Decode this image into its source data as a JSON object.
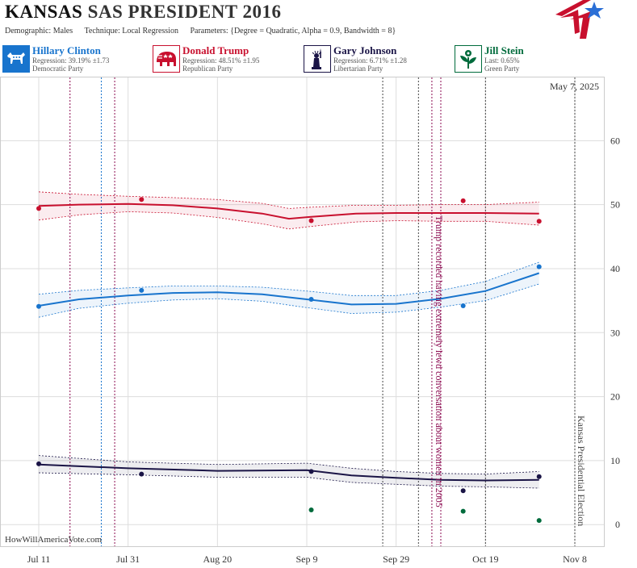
{
  "header": {
    "state": "KANSAS",
    "title_rest": "SAS PRESIDENT 2016",
    "demographic": "Demographic: Males",
    "technique": "Technique: Local Regression",
    "parameters": "Parameters: {Degree = Quadratic, Alpha = 0.9, Bandwidth = 8}"
  },
  "candidates": [
    {
      "name": "Hillary Clinton",
      "stat": "Regression: 39.19% ±1.73",
      "party": "Democratic Party",
      "color": "#1874cd",
      "icon": "donkey-icon"
    },
    {
      "name": "Donald Trump",
      "stat": "Regression: 48.51% ±1.95",
      "party": "Republican Party",
      "color": "#c8102e",
      "icon": "elephant-icon"
    },
    {
      "name": "Gary Johnson",
      "stat": "Regression: 6.71% ±1.28",
      "party": "Libertarian Party",
      "color": "#1a1446",
      "icon": "statue-of-liberty-icon"
    },
    {
      "name": "Jill Stein",
      "stat": "Last: 0.65%",
      "party": "Green Party",
      "color": "#006b3c",
      "icon": "flower-icon"
    }
  ],
  "chart_data": {
    "type": "line",
    "date_label": "May 7, 2025",
    "watermark": "HowWillAmericaVote.com",
    "x_ticks": [
      "Jul 11",
      "Jul 31",
      "Aug 20",
      "Sep 9",
      "Sep 29",
      "Oct 19",
      "Nov 8"
    ],
    "x_range": [
      "2016-07-11",
      "2016-11-08"
    ],
    "y_ticks": [
      0,
      10,
      20,
      30,
      40,
      50,
      60
    ],
    "ylim": [
      -3.5,
      70
    ],
    "grid": true,
    "annotations": [
      {
        "date": "2016-10-07",
        "text": "Trump recorded having extremely lewd conversation about women in 2005",
        "color": "#8b0a50"
      },
      {
        "date": "2016-11-08",
        "text": "Kansas Presidential Election",
        "color": "#444444"
      }
    ],
    "event_lines": [
      {
        "date": "2016-07-28",
        "color": "#8b0a50"
      },
      {
        "date": "2016-07-18",
        "color": "#8b0a50"
      },
      {
        "date": "2016-07-25",
        "color": "#1874cd"
      },
      {
        "date": "2016-09-26",
        "color": "#444444"
      },
      {
        "date": "2016-10-04",
        "color": "#444444"
      },
      {
        "date": "2016-10-09",
        "color": "#8b0a50"
      },
      {
        "date": "2016-10-19",
        "color": "#444444"
      }
    ],
    "series": [
      {
        "name": "Donald Trump",
        "color": "#c8102e",
        "points": [
          [
            "2016-07-11",
            49.4
          ],
          [
            "2016-08-03",
            50.8
          ],
          [
            "2016-09-10",
            47.5
          ],
          [
            "2016-10-14",
            50.6
          ],
          [
            "2016-10-31",
            47.4
          ]
        ],
        "trend": [
          [
            "2016-07-11",
            49.8
          ],
          [
            "2016-07-20",
            50.0
          ],
          [
            "2016-07-31",
            50.1
          ],
          [
            "2016-08-10",
            49.9
          ],
          [
            "2016-08-20",
            49.4
          ],
          [
            "2016-08-30",
            48.6
          ],
          [
            "2016-09-05",
            47.8
          ],
          [
            "2016-09-10",
            48.1
          ],
          [
            "2016-09-20",
            48.6
          ],
          [
            "2016-09-29",
            48.7
          ],
          [
            "2016-10-09",
            48.7
          ],
          [
            "2016-10-19",
            48.7
          ],
          [
            "2016-10-31",
            48.6
          ]
        ],
        "band_hi": [
          [
            "2016-07-11",
            52.0
          ],
          [
            "2016-07-20",
            51.6
          ],
          [
            "2016-07-31",
            51.3
          ],
          [
            "2016-08-10",
            51.1
          ],
          [
            "2016-08-20",
            50.8
          ],
          [
            "2016-08-30",
            50.2
          ],
          [
            "2016-09-05",
            49.4
          ],
          [
            "2016-09-10",
            49.6
          ],
          [
            "2016-09-20",
            49.9
          ],
          [
            "2016-09-29",
            49.9
          ],
          [
            "2016-10-09",
            50.0
          ],
          [
            "2016-10-19",
            50.0
          ],
          [
            "2016-10-31",
            50.4
          ]
        ],
        "band_lo": [
          [
            "2016-07-11",
            47.6
          ],
          [
            "2016-07-20",
            48.4
          ],
          [
            "2016-07-31",
            48.9
          ],
          [
            "2016-08-10",
            48.7
          ],
          [
            "2016-08-20",
            48.0
          ],
          [
            "2016-08-30",
            47.0
          ],
          [
            "2016-09-05",
            46.2
          ],
          [
            "2016-09-10",
            46.6
          ],
          [
            "2016-09-20",
            47.3
          ],
          [
            "2016-09-29",
            47.5
          ],
          [
            "2016-10-09",
            47.4
          ],
          [
            "2016-10-19",
            47.4
          ],
          [
            "2016-10-31",
            46.8
          ]
        ]
      },
      {
        "name": "Hillary Clinton",
        "color": "#1874cd",
        "points": [
          [
            "2016-07-11",
            34.1
          ],
          [
            "2016-08-03",
            36.6
          ],
          [
            "2016-09-10",
            35.2
          ],
          [
            "2016-10-14",
            34.2
          ],
          [
            "2016-10-31",
            40.3
          ]
        ],
        "trend": [
          [
            "2016-07-11",
            34.2
          ],
          [
            "2016-07-20",
            35.2
          ],
          [
            "2016-07-31",
            35.8
          ],
          [
            "2016-08-10",
            36.2
          ],
          [
            "2016-08-20",
            36.3
          ],
          [
            "2016-08-30",
            36.0
          ],
          [
            "2016-09-09",
            35.2
          ],
          [
            "2016-09-19",
            34.4
          ],
          [
            "2016-09-29",
            34.5
          ],
          [
            "2016-10-09",
            35.3
          ],
          [
            "2016-10-19",
            36.5
          ],
          [
            "2016-10-31",
            39.3
          ]
        ],
        "band_hi": [
          [
            "2016-07-11",
            36.0
          ],
          [
            "2016-07-20",
            36.6
          ],
          [
            "2016-07-31",
            37.0
          ],
          [
            "2016-08-10",
            37.3
          ],
          [
            "2016-08-20",
            37.3
          ],
          [
            "2016-08-30",
            37.1
          ],
          [
            "2016-09-09",
            36.5
          ],
          [
            "2016-09-19",
            35.8
          ],
          [
            "2016-09-29",
            35.8
          ],
          [
            "2016-10-09",
            36.6
          ],
          [
            "2016-10-19",
            38.0
          ],
          [
            "2016-10-31",
            41.0
          ]
        ],
        "band_lo": [
          [
            "2016-07-11",
            32.4
          ],
          [
            "2016-07-20",
            33.8
          ],
          [
            "2016-07-31",
            34.6
          ],
          [
            "2016-08-10",
            35.1
          ],
          [
            "2016-08-20",
            35.3
          ],
          [
            "2016-08-30",
            34.9
          ],
          [
            "2016-09-09",
            33.9
          ],
          [
            "2016-09-19",
            33.0
          ],
          [
            "2016-09-29",
            33.2
          ],
          [
            "2016-10-09",
            34.0
          ],
          [
            "2016-10-19",
            35.0
          ],
          [
            "2016-10-31",
            37.6
          ]
        ]
      },
      {
        "name": "Gary Johnson",
        "color": "#1a1446",
        "points": [
          [
            "2016-07-11",
            9.5
          ],
          [
            "2016-08-03",
            7.9
          ],
          [
            "2016-09-10",
            8.3
          ],
          [
            "2016-10-14",
            5.3
          ],
          [
            "2016-10-31",
            7.5
          ]
        ],
        "trend": [
          [
            "2016-07-11",
            9.4
          ],
          [
            "2016-07-31",
            8.8
          ],
          [
            "2016-08-20",
            8.4
          ],
          [
            "2016-09-09",
            8.5
          ],
          [
            "2016-09-19",
            7.7
          ],
          [
            "2016-09-29",
            7.3
          ],
          [
            "2016-10-09",
            7.0
          ],
          [
            "2016-10-19",
            6.9
          ],
          [
            "2016-10-31",
            7.0
          ]
        ],
        "band_hi": [
          [
            "2016-07-11",
            10.8
          ],
          [
            "2016-07-31",
            9.8
          ],
          [
            "2016-08-20",
            9.4
          ],
          [
            "2016-09-09",
            9.6
          ],
          [
            "2016-09-19",
            8.8
          ],
          [
            "2016-09-29",
            8.3
          ],
          [
            "2016-10-09",
            8.0
          ],
          [
            "2016-10-19",
            7.9
          ],
          [
            "2016-10-31",
            8.3
          ]
        ],
        "band_lo": [
          [
            "2016-07-11",
            8.1
          ],
          [
            "2016-07-31",
            7.8
          ],
          [
            "2016-08-20",
            7.4
          ],
          [
            "2016-09-09",
            7.4
          ],
          [
            "2016-09-19",
            6.6
          ],
          [
            "2016-09-29",
            6.3
          ],
          [
            "2016-10-09",
            6.0
          ],
          [
            "2016-10-19",
            5.9
          ],
          [
            "2016-10-31",
            5.7
          ]
        ]
      },
      {
        "name": "Jill Stein",
        "color": "#006b3c",
        "points": [
          [
            "2016-09-10",
            2.3
          ],
          [
            "2016-10-14",
            2.1
          ],
          [
            "2016-10-31",
            0.65
          ]
        ]
      }
    ]
  }
}
